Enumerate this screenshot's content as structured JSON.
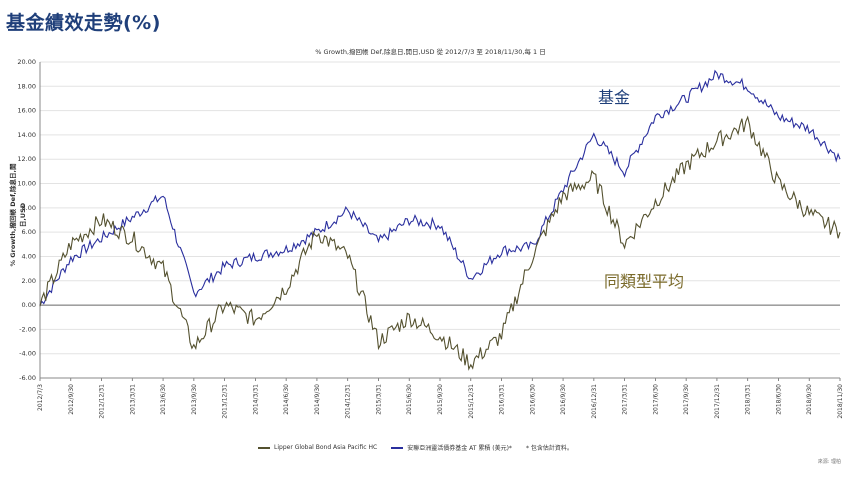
{
  "page_title": "基金績效走勢(%)",
  "chart_data": {
    "type": "line",
    "title": "% Growth,撥回帳 Def,除息日,開日,USD 從 2012/7/3 至 2018/11/30,每 1 日",
    "ylabel": "% Growth,撥回帳 Def,除息日,開日,USD",
    "xlabel": "",
    "ylim": [
      -6,
      20
    ],
    "yticks": [
      "20.00",
      "18.00",
      "16.00",
      "14.00",
      "12.00",
      "10.00",
      "8.00",
      "6.00",
      "4.00",
      "2.00",
      "0.00",
      "-2.00",
      "-4.00",
      "-6.00"
    ],
    "xticks": [
      "2012/7/3",
      "2012/9/30",
      "2012/12/31",
      "2013/3/31",
      "2013/6/30",
      "2013/9/30",
      "2013/12/31",
      "2014/3/31",
      "2014/6/30",
      "2014/9/30",
      "2014/12/31",
      "2015/3/31",
      "2015/6/30",
      "2015/9/30",
      "2015/12/31",
      "2016/3/31",
      "2016/6/30",
      "2016/9/30",
      "2016/12/31",
      "2017/3/31",
      "2017/6/30",
      "2017/9/30",
      "2017/12/31",
      "2018/3/31",
      "2018/6/30",
      "2018/9/30",
      "2018/11/30"
    ],
    "grid": true,
    "legend_position": "bottom",
    "series": [
      {
        "name": "安聯亞洲靈活債券基金 AT 累積 (美元)*",
        "annotation": "基金",
        "color": "#2a2f9e",
        "annotation_color": "#1f3f7a",
        "values": [
          0.0,
          3.8,
          5.5,
          7.2,
          9.0,
          1.0,
          3.2,
          4.0,
          4.6,
          6.0,
          7.8,
          5.2,
          7.0,
          6.6,
          2.2,
          4.5,
          4.8,
          9.5,
          14.0,
          11.0,
          15.5,
          17.0,
          19.0,
          18.0,
          15.5,
          14.5,
          12.0
        ]
      },
      {
        "name": "Lipper Global Bond Asia Pacific HC",
        "annotation": "同類型平均",
        "color": "#54512f",
        "annotation_color": "#7a6a2a",
        "values": [
          0.0,
          5.0,
          7.0,
          5.5,
          3.0,
          -3.5,
          0.0,
          -1.2,
          1.5,
          6.0,
          4.0,
          -3.0,
          -1.0,
          -2.5,
          -4.8,
          -2.5,
          4.0,
          9.0,
          10.5,
          5.0,
          8.5,
          11.5,
          13.5,
          15.0,
          10.0,
          7.5,
          6.0
        ]
      }
    ]
  },
  "legend_footnote": "*  包含估計資料。",
  "source_text": "來源: 理柏"
}
